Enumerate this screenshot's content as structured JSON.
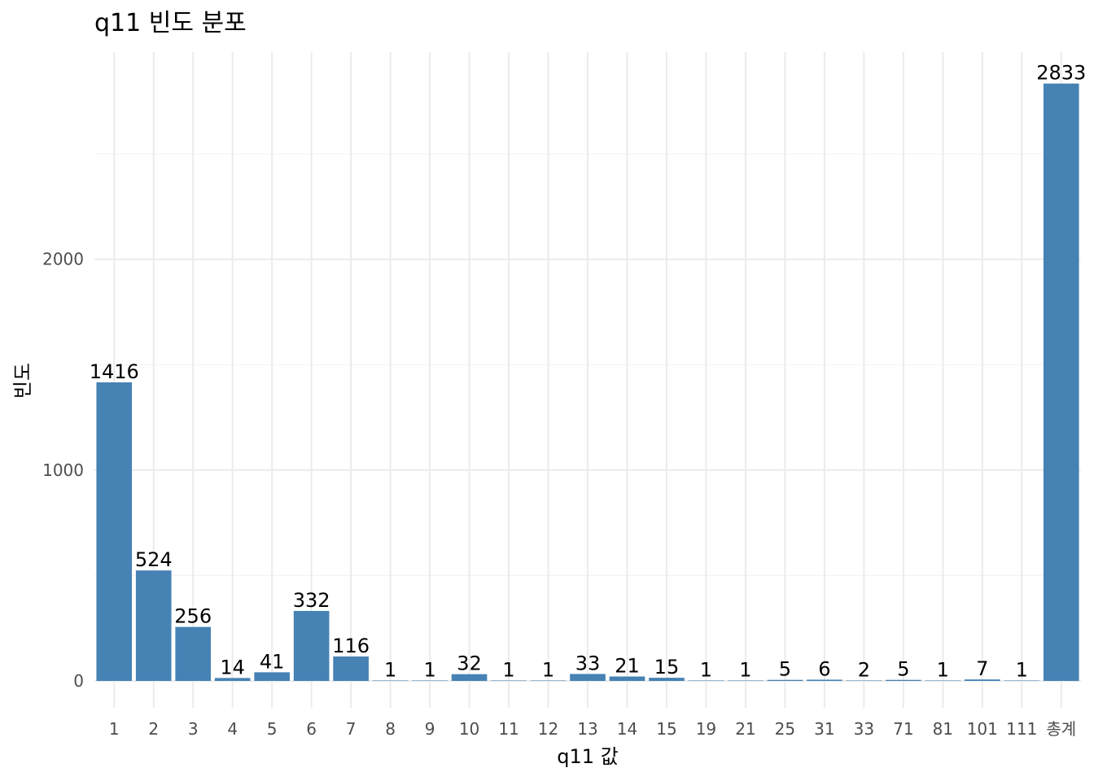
{
  "chart_data": {
    "type": "bar",
    "title": "q11 빈도 분포",
    "xlabel": "q11 값",
    "ylabel": "빈도",
    "categories": [
      "1",
      "2",
      "3",
      "4",
      "5",
      "6",
      "7",
      "8",
      "9",
      "10",
      "11",
      "12",
      "13",
      "14",
      "15",
      "19",
      "21",
      "25",
      "31",
      "33",
      "71",
      "81",
      "101",
      "111",
      "총계"
    ],
    "values": [
      1416,
      524,
      256,
      14,
      41,
      332,
      116,
      1,
      1,
      32,
      1,
      1,
      33,
      21,
      15,
      1,
      1,
      5,
      6,
      2,
      5,
      1,
      7,
      1,
      2833
    ],
    "ylim": [
      0,
      2833
    ],
    "yticks": [
      0,
      1000,
      2000
    ],
    "bar_color": "#4682b4",
    "grid": true,
    "legend": "none"
  }
}
